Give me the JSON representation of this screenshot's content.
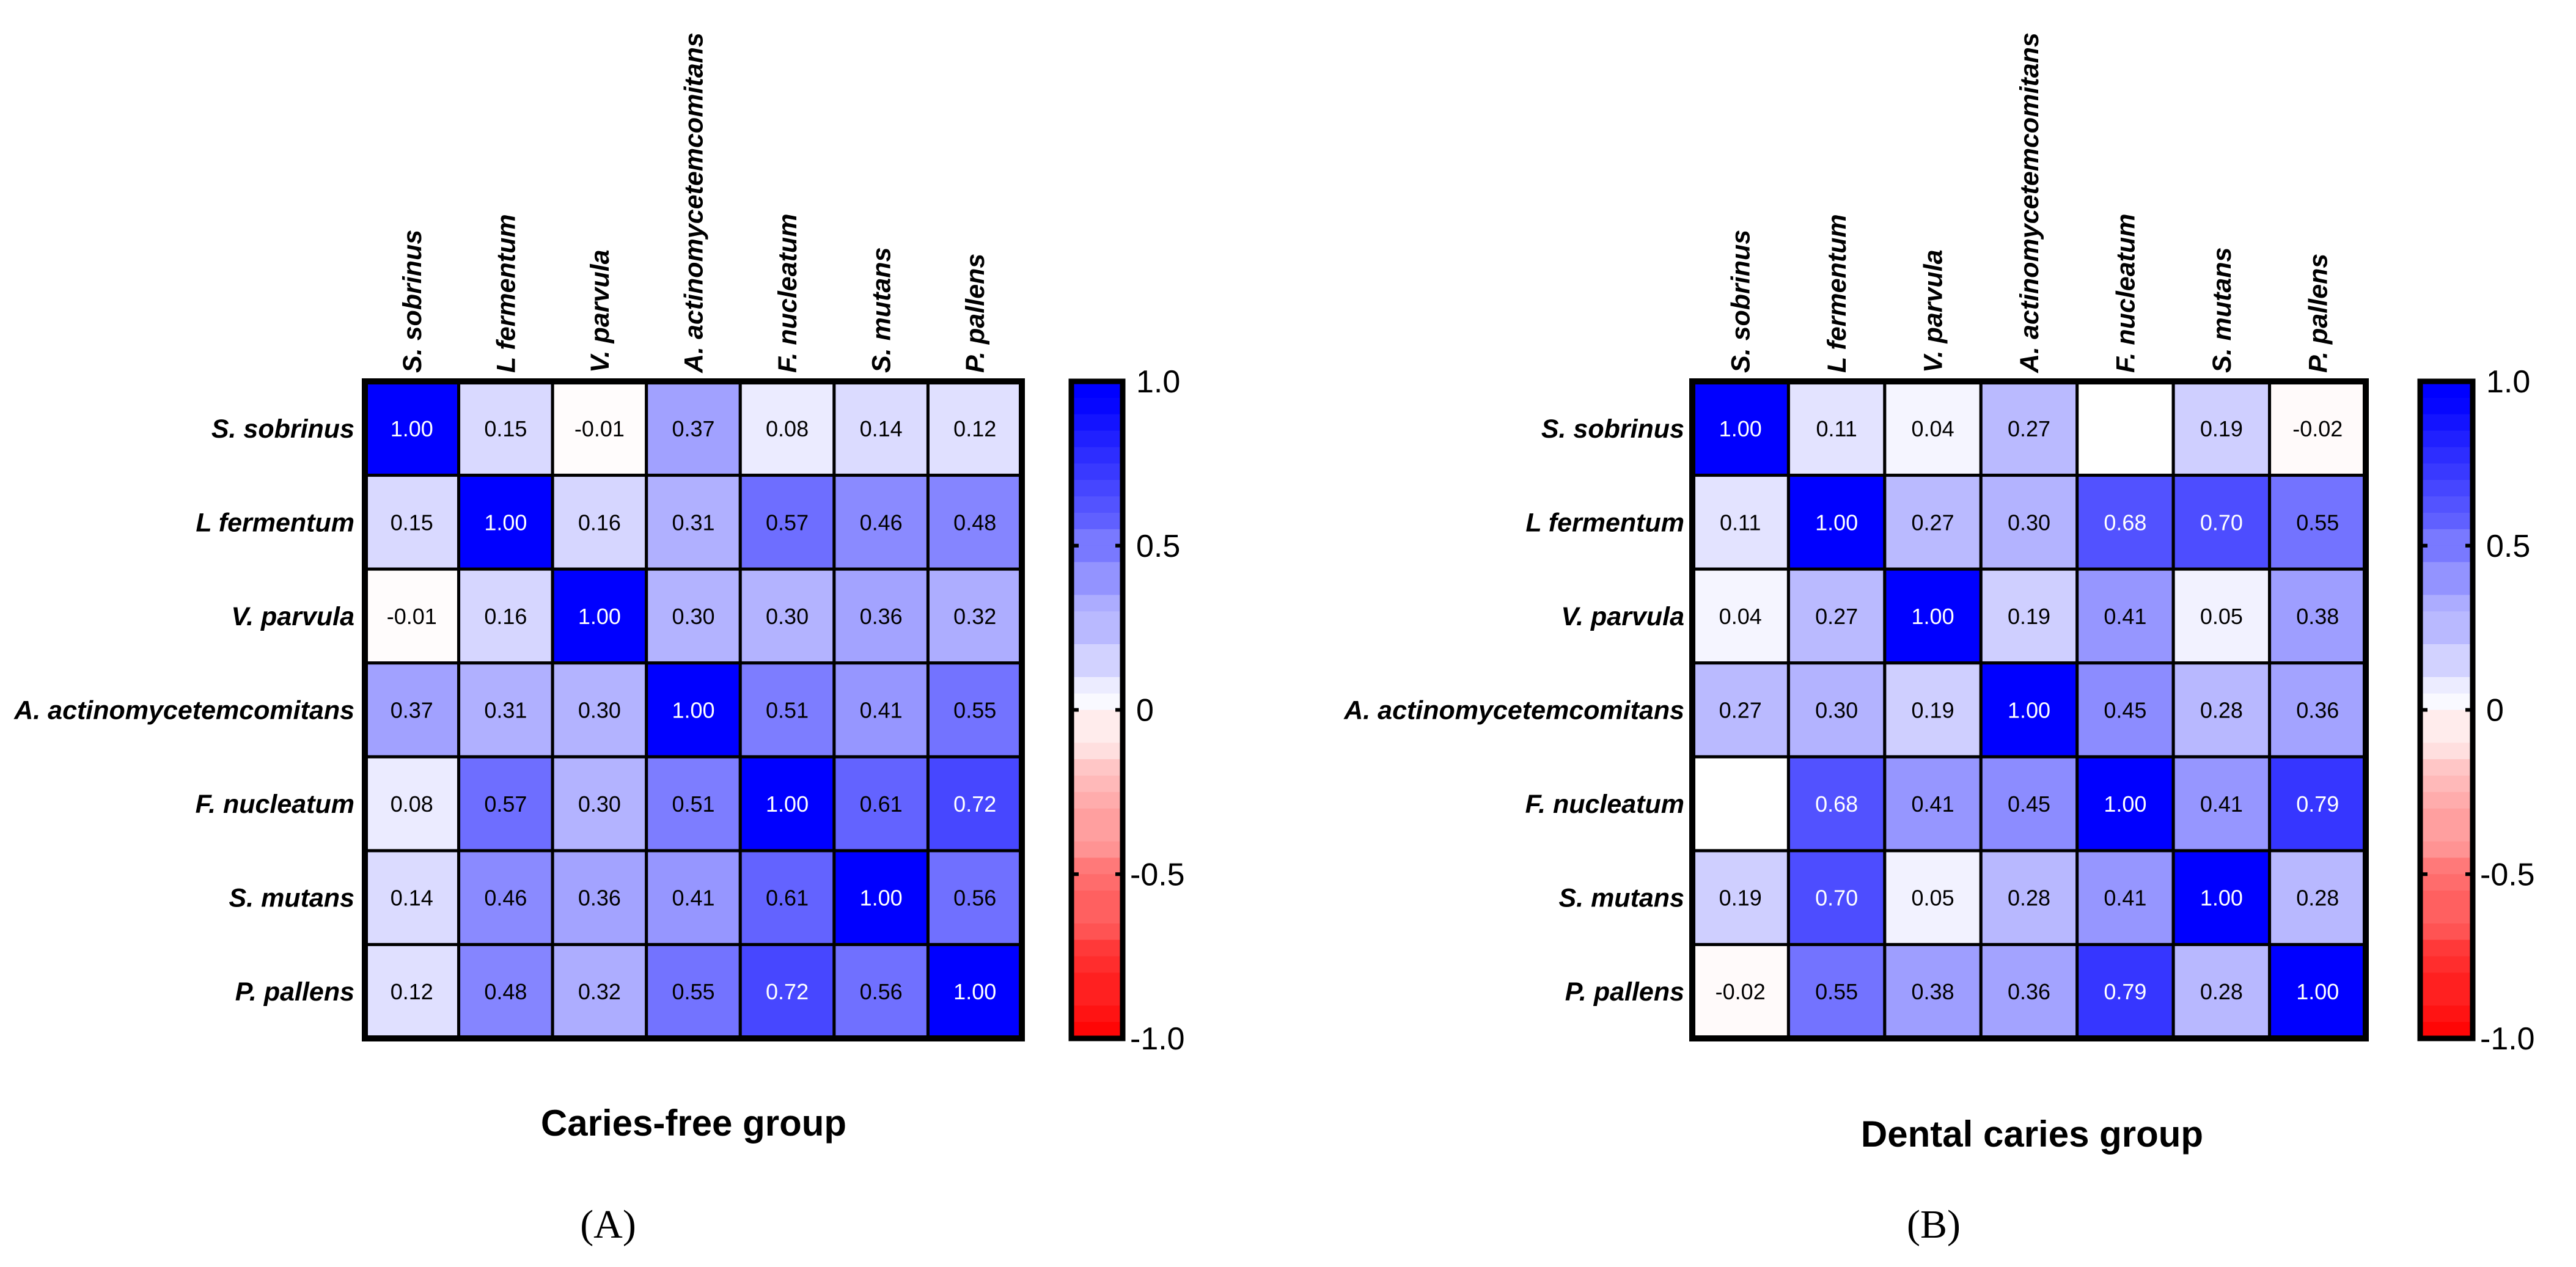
{
  "chart_data": [
    {
      "type": "heatmap",
      "panel_label": "(A)",
      "title": "Caries-free group",
      "labels": [
        "S. sobrinus",
        "L fermentum",
        "V. parvula",
        "A. actinomycetemcomitans",
        "F. nucleatum",
        "S. mutans",
        "P. pallens"
      ],
      "values": [
        [
          1.0,
          0.15,
          -0.01,
          0.37,
          0.08,
          0.14,
          0.12
        ],
        [
          0.15,
          1.0,
          0.16,
          0.31,
          0.57,
          0.46,
          0.48
        ],
        [
          -0.01,
          0.16,
          1.0,
          0.3,
          0.3,
          0.36,
          0.32
        ],
        [
          0.37,
          0.31,
          0.3,
          1.0,
          0.51,
          0.41,
          0.55
        ],
        [
          0.08,
          0.57,
          0.3,
          0.51,
          1.0,
          0.61,
          0.72
        ],
        [
          0.14,
          0.46,
          0.36,
          0.41,
          0.61,
          1.0,
          0.56
        ],
        [
          0.12,
          0.48,
          0.32,
          0.55,
          0.72,
          0.56,
          1.0
        ]
      ],
      "colorbar": {
        "range": [
          -1,
          1
        ],
        "ticks": [
          "1.0",
          "0.5",
          "0",
          "-0.5",
          "-1.0"
        ],
        "tick_values": [
          1,
          0.5,
          0,
          -0.5,
          -1
        ],
        "low_color": "#ff0000",
        "mid_color": "#ffffff",
        "high_color": "#0000ff"
      }
    },
    {
      "type": "heatmap",
      "panel_label": "(B)",
      "title": "Dental caries group",
      "labels": [
        "S. sobrinus",
        "L fermentum",
        "V. parvula",
        "A. actinomycetemcomitans",
        "F. nucleatum",
        "S. mutans",
        "P. pallens"
      ],
      "values": [
        [
          1.0,
          0.11,
          0.04,
          0.27,
          null,
          0.19,
          -0.02
        ],
        [
          0.11,
          1.0,
          0.27,
          0.3,
          0.68,
          0.7,
          0.55
        ],
        [
          0.04,
          0.27,
          1.0,
          0.19,
          0.41,
          0.05,
          0.38
        ],
        [
          0.27,
          0.3,
          0.19,
          1.0,
          0.45,
          0.28,
          0.36
        ],
        [
          null,
          0.68,
          0.41,
          0.45,
          1.0,
          0.41,
          0.79
        ],
        [
          0.19,
          0.7,
          0.05,
          0.28,
          0.41,
          1.0,
          0.28
        ],
        [
          -0.02,
          0.55,
          0.38,
          0.36,
          0.79,
          0.28,
          1.0
        ]
      ],
      "colorbar": {
        "range": [
          -1,
          1
        ],
        "ticks": [
          "1.0",
          "0.5",
          "0",
          "-0.5",
          "-1.0"
        ],
        "tick_values": [
          1,
          0.5,
          0,
          -0.5,
          -1
        ],
        "low_color": "#ff0000",
        "mid_color": "#ffffff",
        "high_color": "#0000ff"
      }
    }
  ]
}
